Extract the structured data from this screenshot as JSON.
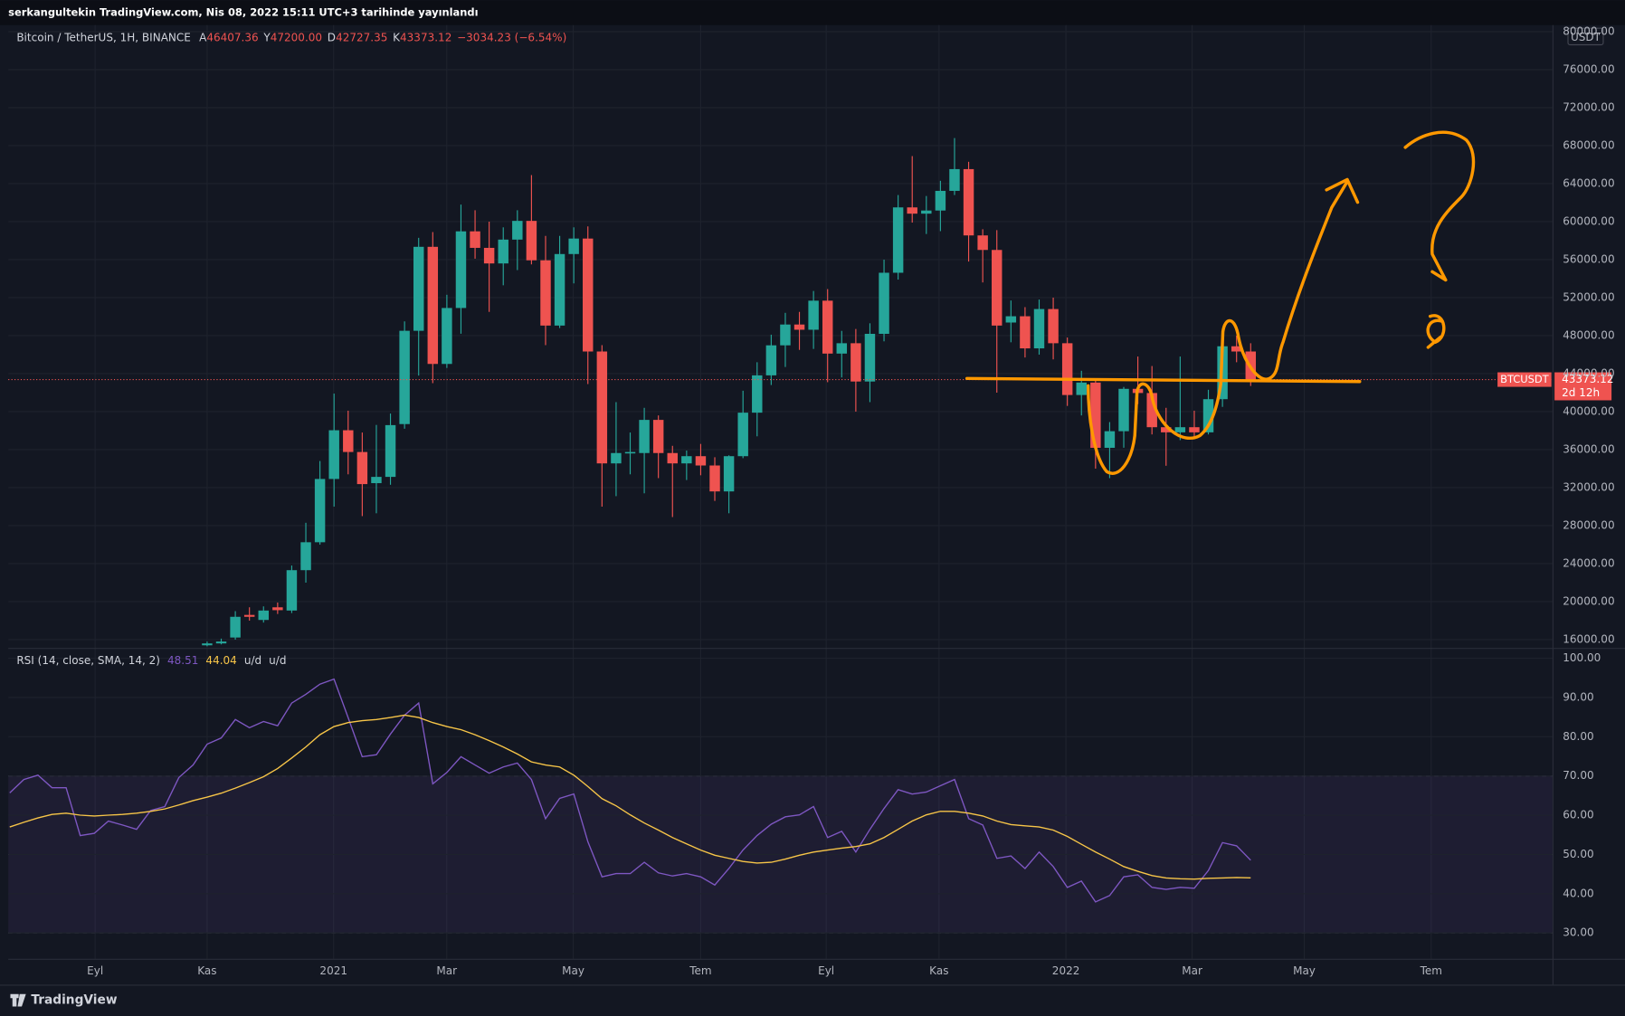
{
  "header": "serkangultekin TradingView.com, Nis 08, 2022 15:11 UTC+3 tarihinde yayınlandı",
  "chart_data": [
    {
      "type": "candlestick",
      "title": "Bitcoin / TetherUS, 1H, BINANCE",
      "legend": [
        {
          "key": "A",
          "value": "46407.36"
        },
        {
          "key": "Y",
          "value": "47200.00"
        },
        {
          "key": "D",
          "value": "42727.35"
        },
        {
          "key": "K",
          "value": "43373.12"
        }
      ],
      "change": "−3034.23 (−6.54%)",
      "currency": "USDT",
      "price_label": {
        "symbol": "BTCUSDT",
        "price": "43373.12",
        "countdown": "2d 12h"
      },
      "up_color": "#26a69a",
      "down_color": "#ef5350",
      "grid": true,
      "xlim": [
        -0.1,
        109.4
      ],
      "xticks": [
        {
          "value": 6.06,
          "label": "Eyl"
        },
        {
          "value": 14,
          "label": "Kas"
        },
        {
          "value": 22.97,
          "label": "2021"
        },
        {
          "value": 30.99,
          "label": "Mar"
        },
        {
          "value": 39.96,
          "label": "May"
        },
        {
          "value": 49,
          "label": "Tem"
        },
        {
          "value": 57.9,
          "label": "Eyl"
        },
        {
          "value": 65.9,
          "label": "Kas"
        },
        {
          "value": 74.9,
          "label": "2022"
        },
        {
          "value": 83.85,
          "label": "Mar"
        },
        {
          "value": 91.8,
          "label": "May"
        },
        {
          "value": 100.8,
          "label": "Tem"
        }
      ],
      "ylim": [
        15127,
        80691
      ],
      "yticks": [
        {
          "value": 16000,
          "label": "16000.00"
        },
        {
          "value": 20000,
          "label": "20000.00"
        },
        {
          "value": 24000,
          "label": "24000.00"
        },
        {
          "value": 28000,
          "label": "28000.00"
        },
        {
          "value": 32000,
          "label": "32000.00"
        },
        {
          "value": 36000,
          "label": "36000.00"
        },
        {
          "value": 40000,
          "label": "40000.00"
        },
        {
          "value": 44000,
          "label": "44000.00"
        },
        {
          "value": 48000,
          "label": "48000.00"
        },
        {
          "value": 52000,
          "label": "52000.00"
        },
        {
          "value": 56000,
          "label": "56000.00"
        },
        {
          "value": 60000,
          "label": "60000.00"
        },
        {
          "value": 64000,
          "label": "64000.00"
        },
        {
          "value": 68000,
          "label": "68000.00"
        },
        {
          "value": 72000,
          "label": "72000.00"
        },
        {
          "value": 76000,
          "label": "76000.00"
        },
        {
          "value": 80000,
          "label": "80000.00"
        }
      ],
      "ohlc": [
        null,
        null,
        null,
        null,
        null,
        null,
        null,
        null,
        null,
        null,
        null,
        null,
        null,
        null,
        [
          15400,
          15800,
          15300,
          15600
        ],
        [
          15600,
          16100,
          15500,
          15800
        ],
        [
          16220,
          19000,
          16000,
          18400
        ],
        [
          18600,
          19400,
          18000,
          18400
        ],
        [
          18070,
          19500,
          17800,
          19060
        ],
        [
          19400,
          19900,
          18700,
          19100
        ],
        [
          19060,
          23800,
          18800,
          23310
        ],
        [
          23310,
          28300,
          22000,
          26250
        ],
        [
          26250,
          34800,
          26000,
          32910
        ],
        [
          32910,
          41900,
          30000,
          38040
        ],
        [
          38040,
          40100,
          33400,
          35750
        ],
        [
          35750,
          37800,
          29000,
          32370
        ],
        [
          32470,
          38600,
          29300,
          33130
        ],
        [
          33130,
          39800,
          32300,
          38580
        ],
        [
          38690,
          49500,
          38200,
          48510
        ],
        [
          48510,
          58300,
          43800,
          57350
        ],
        [
          57350,
          58900,
          43000,
          45020
        ],
        [
          45020,
          52300,
          44600,
          50910
        ],
        [
          50910,
          61800,
          48200,
          58980
        ],
        [
          58980,
          61200,
          56100,
          57240
        ],
        [
          57240,
          60000,
          50500,
          55600
        ],
        [
          55600,
          59400,
          53300,
          58110
        ],
        [
          58110,
          61200,
          54900,
          60080
        ],
        [
          60080,
          64900,
          55500,
          55930
        ],
        [
          55930,
          58500,
          47000,
          49060
        ],
        [
          49060,
          58500,
          48800,
          56590
        ],
        [
          56590,
          59400,
          53500,
          58220
        ],
        [
          58220,
          59500,
          42900,
          46330
        ],
        [
          46330,
          47000,
          30000,
          34550
        ],
        [
          34550,
          41000,
          31100,
          35640
        ],
        [
          35600,
          37800,
          33400,
          35750
        ],
        [
          35640,
          40400,
          31400,
          39130
        ],
        [
          39130,
          39600,
          33000,
          35640
        ],
        [
          35640,
          36400,
          28900,
          34550
        ],
        [
          34550,
          35900,
          32800,
          35310
        ],
        [
          35310,
          36600,
          33300,
          34330
        ],
        [
          34330,
          35200,
          30600,
          31600
        ],
        [
          31600,
          35400,
          29300,
          35310
        ],
        [
          35310,
          42200,
          35100,
          39890
        ],
        [
          39890,
          45200,
          37400,
          43820
        ],
        [
          43820,
          48100,
          42800,
          46980
        ],
        [
          46980,
          50400,
          44700,
          49170
        ],
        [
          49170,
          50500,
          46500,
          48620
        ],
        [
          48620,
          52700,
          46600,
          51680
        ],
        [
          51680,
          52900,
          43100,
          46110
        ],
        [
          46110,
          48500,
          43600,
          47200
        ],
        [
          47200,
          48700,
          40000,
          43170
        ],
        [
          43170,
          49300,
          41000,
          48190
        ],
        [
          48190,
          56000,
          47400,
          54620
        ],
        [
          54620,
          62800,
          53900,
          61500
        ],
        [
          61500,
          66900,
          59900,
          60840
        ],
        [
          60840,
          62700,
          58700,
          61170
        ],
        [
          61170,
          64300,
          59000,
          63240
        ],
        [
          63240,
          68800,
          62800,
          65530
        ],
        [
          65530,
          66300,
          55800,
          58550
        ],
        [
          58550,
          59200,
          53600,
          57020
        ],
        [
          57020,
          59100,
          42000,
          49060
        ],
        [
          49380,
          51700,
          47300,
          50040
        ],
        [
          50040,
          51000,
          45700,
          46660
        ],
        [
          46660,
          51800,
          46000,
          50800
        ],
        [
          50800,
          52000,
          45500,
          47200
        ],
        [
          47200,
          47800,
          40600,
          41750
        ],
        [
          41750,
          44300,
          39600,
          43060
        ],
        [
          43060,
          43500,
          34000,
          36190
        ],
        [
          36190,
          38900,
          33000,
          37940
        ],
        [
          37940,
          42600,
          36200,
          42400
        ],
        [
          42400,
          45800,
          40800,
          41960
        ],
        [
          41960,
          44800,
          37600,
          38360
        ],
        [
          38360,
          40400,
          34300,
          37820
        ],
        [
          37820,
          45800,
          37000,
          38360
        ],
        [
          38360,
          40100,
          37200,
          37820
        ],
        [
          37820,
          42300,
          37600,
          41310
        ],
        [
          41310,
          48200,
          40500,
          46880
        ],
        [
          46880,
          48000,
          45200,
          46330
        ],
        [
          46330,
          47200,
          42700,
          43373.12
        ]
      ]
    },
    {
      "type": "line",
      "title": "RSI (14, close, SMA, 14, 2)",
      "extras": [
        "u/d",
        "u/d"
      ],
      "xlim": [
        -0.1,
        109.4
      ],
      "ylim": [
        23.4,
        101.85
      ],
      "yticks": [
        {
          "value": 30,
          "label": "30.00"
        },
        {
          "value": 40,
          "label": "40.00"
        },
        {
          "value": 50,
          "label": "50.00"
        },
        {
          "value": 60,
          "label": "60.00"
        },
        {
          "value": 70,
          "label": "70.00"
        },
        {
          "value": 80,
          "label": "80.00"
        },
        {
          "value": 90,
          "label": "90.00"
        },
        {
          "value": 100,
          "label": "100.00"
        }
      ],
      "band_levels": [
        30,
        50,
        70
      ],
      "band_color": "#7e57c2",
      "series": [
        {
          "color": "#7e57c2",
          "legend_value": "48.51",
          "values": [
            65.7,
            69.1,
            70.2,
            67.0,
            67.0,
            54.8,
            55.4,
            58.5,
            57.5,
            56.4,
            61.2,
            62.2,
            69.6,
            72.8,
            78.1,
            79.7,
            84.4,
            82.3,
            83.9,
            82.8,
            88.6,
            90.8,
            93.4,
            94.7,
            84.9,
            74.9,
            75.4,
            80.7,
            85.5,
            88.6,
            68.0,
            70.9,
            74.9,
            72.8,
            70.7,
            72.3,
            73.3,
            69.1,
            59.1,
            64.3,
            65.4,
            53.2,
            44.3,
            45.1,
            45.1,
            48.0,
            45.3,
            44.5,
            45.1,
            44.3,
            42.2,
            46.4,
            51.1,
            54.8,
            57.7,
            59.6,
            60.1,
            62.2,
            54.3,
            55.9,
            50.6,
            56.4,
            61.7,
            66.5,
            65.4,
            65.9,
            67.5,
            69.1,
            59.1,
            57.5,
            49.0,
            49.6,
            46.4,
            50.6,
            46.9,
            41.6,
            43.2,
            37.9,
            39.5,
            44.3,
            44.8,
            41.6,
            41.1,
            41.6,
            41.4,
            45.9,
            53.0,
            52.2,
            48.51
          ]
        },
        {
          "color": "#f7c548",
          "legend_value": "44.04",
          "values": [
            57.0,
            58.2,
            59.3,
            60.2,
            60.5,
            60.0,
            59.8,
            60.0,
            60.2,
            60.5,
            61.0,
            61.6,
            62.6,
            63.7,
            64.6,
            65.6,
            66.9,
            68.3,
            69.8,
            71.9,
            74.6,
            77.4,
            80.5,
            82.6,
            83.6,
            84.1,
            84.4,
            84.9,
            85.5,
            84.9,
            83.6,
            82.6,
            81.8,
            80.5,
            79.0,
            77.4,
            75.6,
            73.6,
            72.8,
            72.3,
            70.2,
            67.3,
            64.2,
            62.4,
            60.1,
            58.0,
            56.2,
            54.3,
            52.7,
            51.1,
            49.8,
            49.0,
            48.2,
            47.8,
            48.0,
            48.8,
            49.8,
            50.6,
            51.1,
            51.6,
            52.0,
            52.7,
            54.3,
            56.4,
            58.5,
            60.1,
            61.0,
            61.0,
            60.5,
            59.8,
            58.5,
            57.6,
            57.3,
            57.0,
            56.2,
            54.6,
            52.6,
            50.6,
            48.8,
            46.9,
            45.7,
            44.6,
            44.0,
            43.8,
            43.7,
            43.9,
            44.0,
            44.1,
            44.04
          ]
        }
      ]
    }
  ],
  "footer": "TradingView"
}
